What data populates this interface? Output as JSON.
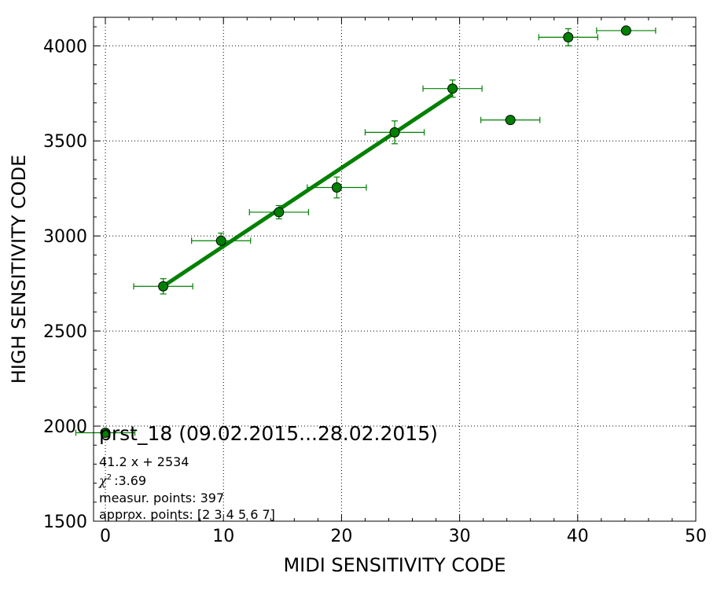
{
  "chart_data": {
    "type": "scatter",
    "xlabel": "MIDI SENSITIVITY CODE",
    "ylabel": "HIGH SENSITIVITY CODE",
    "xlim": [
      -1,
      50
    ],
    "ylim": [
      1500,
      4150
    ],
    "x_ticks": [
      0,
      10,
      20,
      30,
      40,
      50
    ],
    "y_ticks": [
      1500,
      2000,
      2500,
      3000,
      3500,
      4000
    ],
    "grid": true,
    "series": [
      {
        "marker_color": "#008000",
        "points": [
          {
            "x": 0.0,
            "y": 1965,
            "xerr": 2.5,
            "yerr": 0
          },
          {
            "x": 4.9,
            "y": 2735,
            "xerr": 2.5,
            "yerr": 40
          },
          {
            "x": 9.8,
            "y": 2975,
            "xerr": 2.5,
            "yerr": 40
          },
          {
            "x": 14.7,
            "y": 3125,
            "xerr": 2.5,
            "yerr": 35
          },
          {
            "x": 19.6,
            "y": 3255,
            "xerr": 2.5,
            "yerr": 55
          },
          {
            "x": 24.5,
            "y": 3545,
            "xerr": 2.5,
            "yerr": 60
          },
          {
            "x": 29.4,
            "y": 3775,
            "xerr": 2.5,
            "yerr": 45
          },
          {
            "x": 34.3,
            "y": 3610,
            "xerr": 2.5,
            "yerr": 0
          },
          {
            "x": 39.2,
            "y": 4045,
            "xerr": 2.5,
            "yerr": 45
          },
          {
            "x": 44.1,
            "y": 4080,
            "xerr": 2.5,
            "yerr": 0
          }
        ]
      }
    ],
    "fit": {
      "slope": 41.2,
      "intercept": 2534,
      "x_range": [
        4.9,
        29.4
      ],
      "color": "#008000"
    },
    "annotations": {
      "title": "prst_18 (09.02.2015...28.02.2015)",
      "equation": "41.2 x + 2534",
      "chi2_symbol": "χ",
      "chi2_sup": "2",
      "chi2_value": ":3.69",
      "measured": "measur. points: 397",
      "approx": "approx. points: [2 3 4 5 6 7]"
    }
  }
}
